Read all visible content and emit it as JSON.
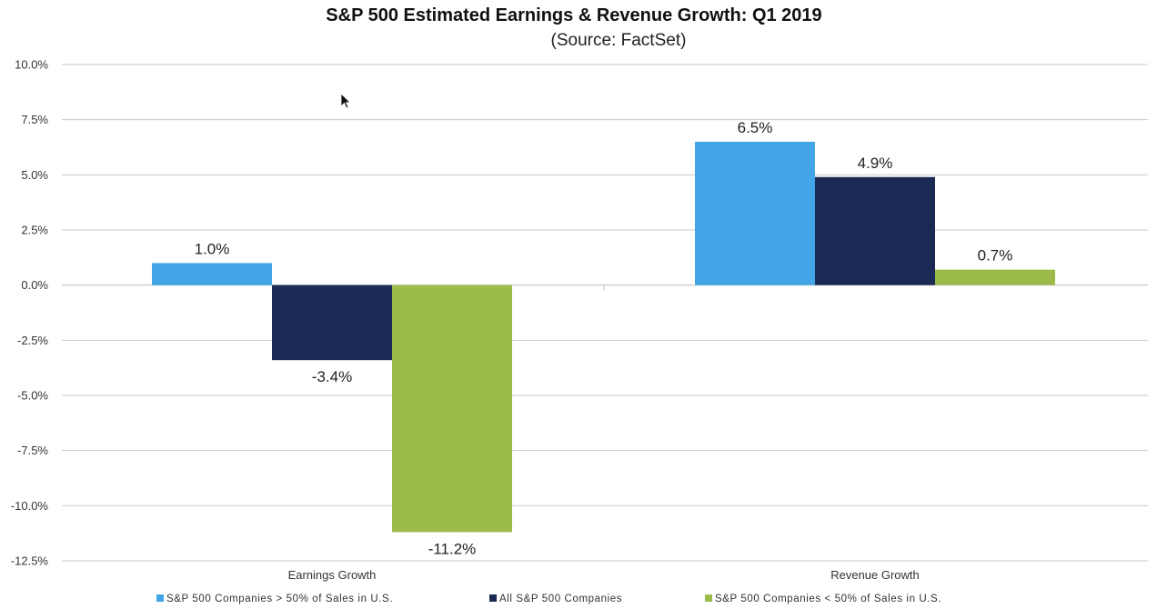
{
  "chart_data": {
    "type": "bar",
    "title": "S&P 500 Estimated Earnings & Revenue Growth:  Q1 2019",
    "subtitle": "(Source: FactSet)",
    "xlabel": "",
    "ylabel": "",
    "categories": [
      "Earnings Growth",
      "Revenue Growth"
    ],
    "series": [
      {
        "name": "S&P 500 Companies > 50% of Sales in U.S.",
        "color": "#41a5e8",
        "values": [
          1.0,
          6.5
        ],
        "labels": [
          "1.0%",
          "6.5%"
        ]
      },
      {
        "name": "All S&P 500 Companies",
        "color": "#1b2a55",
        "values": [
          -3.4,
          4.9
        ],
        "labels": [
          "-3.4%",
          "4.9%"
        ]
      },
      {
        "name": "S&P 500 Companies < 50% of Sales in U.S.",
        "color": "#9dbb4b",
        "values": [
          -11.2,
          0.7
        ],
        "labels": [
          "-11.2%",
          "0.7%"
        ]
      }
    ],
    "ylim": [
      -12.5,
      10.0
    ],
    "yticks": [
      10.0,
      7.5,
      5.0,
      2.5,
      0.0,
      -2.5,
      -5.0,
      -7.5,
      -10.0,
      -12.5
    ],
    "ytick_labels": [
      "10.0%",
      "7.5%",
      "5.0%",
      "2.5%",
      "0.0%",
      "-2.5%",
      "-5.0%",
      "-7.5%",
      "-10.0%",
      "-12.5%"
    ],
    "grid": true,
    "legend_position": "bottom"
  }
}
